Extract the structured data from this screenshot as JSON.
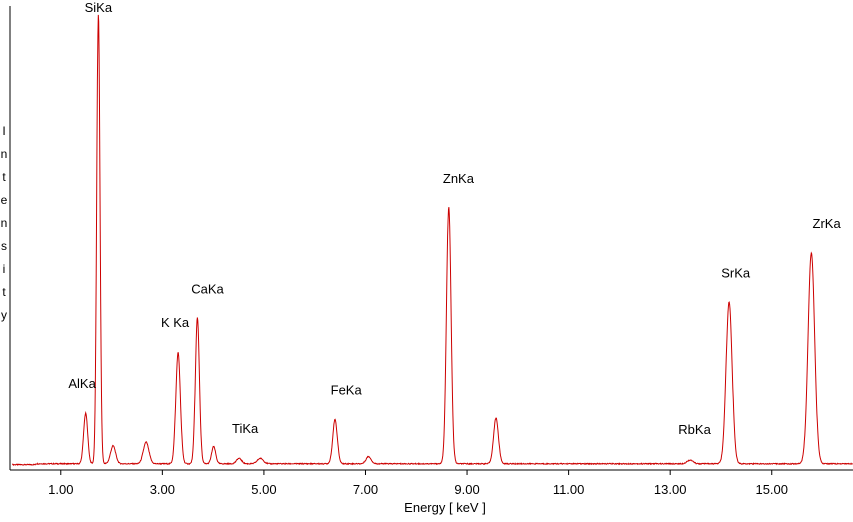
{
  "chart_data": {
    "type": "line",
    "title": "",
    "xlabel": "Energy [ keV ]",
    "ylabel": "Intensity",
    "xlim": [
      0.0,
      16.6
    ],
    "ylim": [
      0,
      1000
    ],
    "x_ticks": [
      {
        "value": 1.0,
        "label": "1.00"
      },
      {
        "value": 3.0,
        "label": "3.00"
      },
      {
        "value": 5.0,
        "label": "5.00"
      },
      {
        "value": 7.0,
        "label": "7.00"
      },
      {
        "value": 9.0,
        "label": "9.00"
      },
      {
        "value": 11.0,
        "label": "11.00"
      },
      {
        "value": 13.0,
        "label": "13.00"
      },
      {
        "value": 15.0,
        "label": "15.00"
      }
    ],
    "grid": false,
    "line_color": "#cc0000",
    "baseline": 5,
    "peaks": [
      {
        "center": 1.49,
        "height": 112,
        "width": 0.04
      },
      {
        "center": 1.74,
        "height": 1000,
        "width": 0.032
      },
      {
        "center": 2.03,
        "height": 40,
        "width": 0.05
      },
      {
        "center": 2.68,
        "height": 48,
        "width": 0.055
      },
      {
        "center": 3.31,
        "height": 247,
        "width": 0.045
      },
      {
        "center": 3.69,
        "height": 325,
        "width": 0.04
      },
      {
        "center": 4.01,
        "height": 38,
        "width": 0.04
      },
      {
        "center": 4.51,
        "height": 12,
        "width": 0.05
      },
      {
        "center": 4.93,
        "height": 12,
        "width": 0.06
      },
      {
        "center": 6.4,
        "height": 98,
        "width": 0.045
      },
      {
        "center": 7.06,
        "height": 16,
        "width": 0.05
      },
      {
        "center": 8.64,
        "height": 570,
        "width": 0.045
      },
      {
        "center": 9.57,
        "height": 102,
        "width": 0.048
      },
      {
        "center": 13.39,
        "height": 8,
        "width": 0.06
      },
      {
        "center": 14.16,
        "height": 360,
        "width": 0.06
      },
      {
        "center": 15.78,
        "height": 468,
        "width": 0.065
      }
    ],
    "annotations": [
      {
        "label": "SiKa",
        "x": 1.74,
        "y": 1000
      },
      {
        "label": "AlKa",
        "x": 1.42,
        "y": 165
      },
      {
        "label": "K Ka",
        "x": 3.25,
        "y": 300
      },
      {
        "label": "CaKa",
        "x": 3.89,
        "y": 375
      },
      {
        "label": "TiKa",
        "x": 4.63,
        "y": 65
      },
      {
        "label": "FeKa",
        "x": 6.62,
        "y": 150
      },
      {
        "label": "ZnKa",
        "x": 8.83,
        "y": 620
      },
      {
        "label": "RbKa",
        "x": 13.48,
        "y": 62
      },
      {
        "label": "SrKa",
        "x": 14.29,
        "y": 410
      },
      {
        "label": "ZrKa",
        "x": 16.08,
        "y": 520
      }
    ]
  }
}
